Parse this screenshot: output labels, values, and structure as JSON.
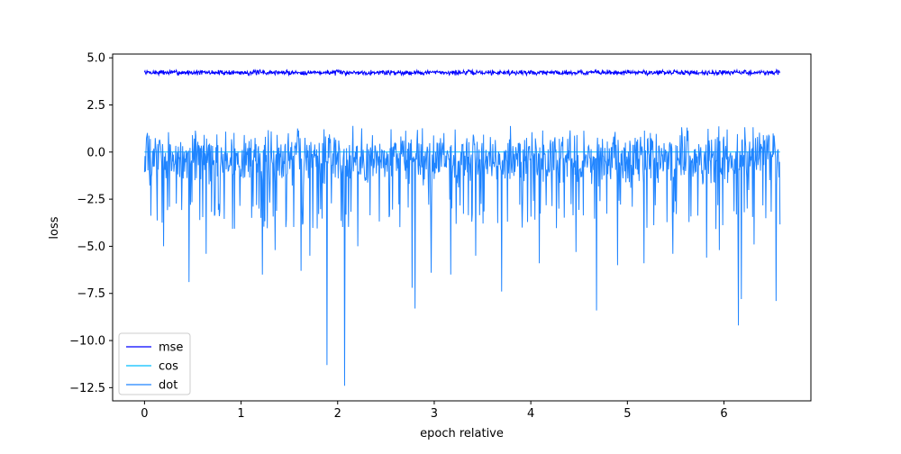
{
  "chart_data": {
    "type": "line",
    "title": "",
    "xlabel": "epoch relative",
    "ylabel": "loss",
    "xlim": [
      -0.33,
      6.9
    ],
    "ylim": [
      -13.2,
      5.2
    ],
    "x_ticks": [
      0,
      1,
      2,
      3,
      4,
      5,
      6
    ],
    "y_ticks": [
      5.0,
      2.5,
      0.0,
      -2.5,
      -5.0,
      -7.5,
      -10.0,
      -12.5
    ],
    "x_tick_labels": [
      "0",
      "1",
      "2",
      "3",
      "4",
      "5",
      "6"
    ],
    "y_tick_labels": [
      "5.0",
      "2.5",
      "0.0",
      "−2.5",
      "−5.0",
      "−7.5",
      "−10.0",
      "−12.5"
    ],
    "grid": false,
    "legend_position": "lower-left",
    "x_range": [
      0,
      6.58
    ],
    "sample_count": 1300,
    "series": [
      {
        "name": "mse",
        "color": "#0000ff",
        "mean": 4.22,
        "noise_amplitude": 0.12,
        "spikes": []
      },
      {
        "name": "cos",
        "color": "#00bfff",
        "mean": 0.0,
        "noise_amplitude": 0.0,
        "spikes": []
      },
      {
        "name": "dot",
        "color": "#1f84ff",
        "mean": -0.3,
        "noise_amplitude": 1.3,
        "spikes": [
          [
            0.2,
            -5.0
          ],
          [
            0.46,
            -6.9
          ],
          [
            0.64,
            -5.4
          ],
          [
            1.22,
            -6.5
          ],
          [
            1.35,
            -5.2
          ],
          [
            1.62,
            -6.3
          ],
          [
            1.71,
            -5.5
          ],
          [
            1.89,
            -11.3
          ],
          [
            2.07,
            -12.4
          ],
          [
            2.21,
            -5.0
          ],
          [
            2.77,
            -7.2
          ],
          [
            2.8,
            -8.3
          ],
          [
            2.97,
            -6.4
          ],
          [
            3.17,
            -6.5
          ],
          [
            3.43,
            -5.5
          ],
          [
            3.7,
            -7.4
          ],
          [
            4.09,
            -5.9
          ],
          [
            4.47,
            -5.3
          ],
          [
            4.68,
            -8.4
          ],
          [
            4.9,
            -6.0
          ],
          [
            5.17,
            -5.9
          ],
          [
            5.47,
            -5.4
          ],
          [
            5.82,
            -5.6
          ],
          [
            5.95,
            -5.2
          ],
          [
            6.15,
            -9.2
          ],
          [
            6.18,
            -7.8
          ],
          [
            6.31,
            -4.9
          ],
          [
            6.54,
            -7.9
          ]
        ]
      }
    ]
  }
}
